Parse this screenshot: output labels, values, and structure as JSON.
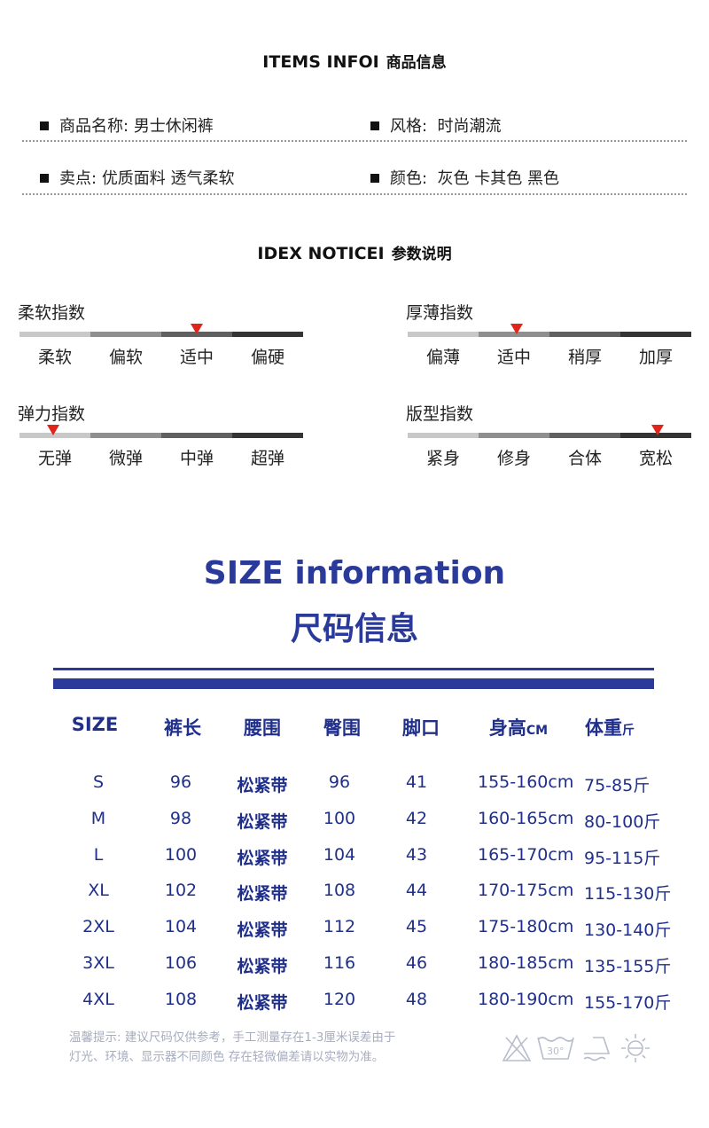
{
  "items_info": {
    "title_en": "ITEMS INFOI",
    "title_cn": "商品信息",
    "fields": [
      {
        "label": "商品名称:",
        "value": "男士休闲裤"
      },
      {
        "label": "风格:",
        "value": "时尚潮流"
      },
      {
        "label": "卖点:",
        "value": "优质面料 透气柔软"
      },
      {
        "label": "颜色:",
        "value": "灰色 卡其色 黑色"
      }
    ]
  },
  "index_notice": {
    "title_en": "IDEX NOTICEI",
    "title_cn": "参数说明",
    "bar_colors": [
      "#c8c8c8",
      "#8f8f8f",
      "#606060",
      "#343434"
    ],
    "marker_color": "#e0251b",
    "gauges": [
      {
        "title": "柔软指数",
        "labels": [
          "柔软",
          "偏软",
          "适中",
          "偏硬"
        ],
        "selected": "适中",
        "level": 0.625
      },
      {
        "title": "厚薄指数",
        "labels": [
          "偏薄",
          "适中",
          "稍厚",
          "加厚"
        ],
        "selected": "适中",
        "level": 0.385
      },
      {
        "title": "弹力指数",
        "labels": [
          "无弹",
          "微弹",
          "中弹",
          "超弹"
        ],
        "selected": "无弹",
        "level": 0.12
      },
      {
        "title": "版型指数",
        "labels": [
          "紧身",
          "修身",
          "合体",
          "宽松"
        ],
        "selected": "宽松",
        "level": 0.88
      }
    ]
  },
  "size": {
    "title_en": "SIZE information",
    "title_cn": "尺码信息",
    "accent": "#2a3a9a",
    "headers": [
      {
        "t": "SIZE"
      },
      {
        "t": "裤长"
      },
      {
        "t": "腰围"
      },
      {
        "t": "臀围"
      },
      {
        "t": "脚口"
      },
      {
        "t": "身高",
        "u": "CM"
      },
      {
        "t": "体重",
        "u": "斤"
      }
    ],
    "rows": [
      [
        "S",
        "96",
        "松紧带",
        "96",
        "41",
        "155-160cm",
        "75-85斤"
      ],
      [
        "M",
        "98",
        "松紧带",
        "100",
        "42",
        "160-165cm",
        "80-100斤"
      ],
      [
        "L",
        "100",
        "松紧带",
        "104",
        "43",
        "165-170cm",
        "95-115斤"
      ],
      [
        "XL",
        "102",
        "松紧带",
        "108",
        "44",
        "170-175cm",
        "115-130斤"
      ],
      [
        "2XL",
        "104",
        "松紧带",
        "112",
        "45",
        "175-180cm",
        "130-140斤"
      ],
      [
        "3XL",
        "106",
        "松紧带",
        "116",
        "46",
        "180-185cm",
        "135-155斤"
      ],
      [
        "4XL",
        "108",
        "松紧带",
        "120",
        "48",
        "180-190cm",
        "155-170斤"
      ]
    ]
  },
  "note": {
    "line1": "温馨提示: 建议尺码仅供参考，手工测量存在1-3厘米误差由于",
    "line2": "灯光、环境、显示器不同颜色 存在轻微偏差请以实物为准。"
  },
  "care_icons": [
    "no-bleach-icon",
    "wash-30-icon",
    "iron-icon",
    "no-sun-dry-icon"
  ],
  "care_wash_temp": "30°"
}
